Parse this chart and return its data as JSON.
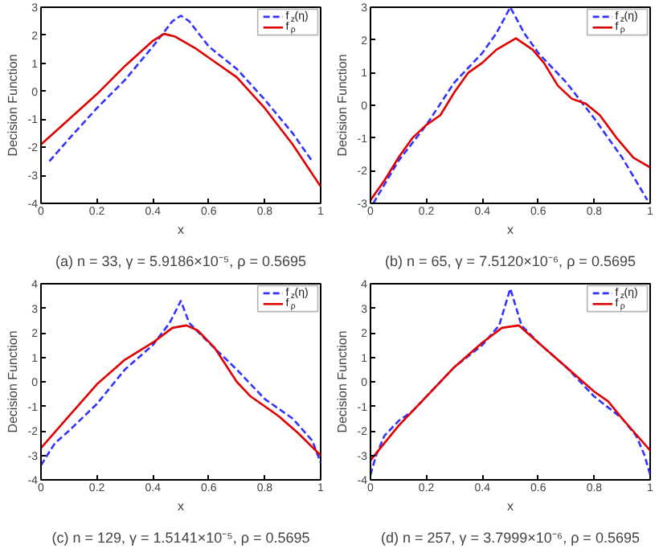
{
  "chart_data": [
    {
      "type": "line",
      "title": "(a) n = 33, γ = 5.9186×10⁻⁵, ρ = 0.5695",
      "xlabel": "x",
      "ylabel": "Decision Function",
      "xlim": [
        0,
        1
      ],
      "ylim": [
        -4,
        3
      ],
      "xticks": [
        0,
        0.2,
        0.4,
        0.6,
        0.8,
        1
      ],
      "yticks": [
        -4,
        -3,
        -2,
        -1,
        0,
        1,
        2,
        3
      ],
      "legend": "top right",
      "series": [
        {
          "name": "f$_{z}$(η)",
          "color": "#3333ff",
          "line_style": "dashed",
          "x": [
            0.03,
            0.1,
            0.2,
            0.3,
            0.4,
            0.47,
            0.5,
            0.53,
            0.6,
            0.7,
            0.8,
            0.9,
            0.97
          ],
          "values": [
            -2.5,
            -1.7,
            -0.6,
            0.4,
            1.6,
            2.5,
            2.7,
            2.5,
            1.6,
            0.8,
            -0.3,
            -1.5,
            -2.5
          ]
        },
        {
          "name": "f$_{ρ}$",
          "color": "#e00000",
          "line_style": "solid",
          "x": [
            0,
            0.1,
            0.2,
            0.3,
            0.4,
            0.44,
            0.48,
            0.55,
            0.6,
            0.7,
            0.8,
            0.9,
            1.0
          ],
          "values": [
            -1.9,
            -1.0,
            -0.1,
            0.9,
            1.8,
            2.05,
            1.95,
            1.55,
            1.2,
            0.5,
            -0.6,
            -1.9,
            -3.4
          ]
        }
      ]
    },
    {
      "type": "line",
      "title": "(b) n = 65, γ = 7.5120×10⁻⁶, ρ = 0.5695",
      "xlabel": "x",
      "ylabel": "Decision Function",
      "xlim": [
        0,
        1
      ],
      "ylim": [
        -3,
        3
      ],
      "xticks": [
        0,
        0.2,
        0.4,
        0.6,
        0.8,
        1
      ],
      "yticks": [
        -3,
        -2,
        -1,
        0,
        1,
        2,
        3
      ],
      "legend": "top right",
      "series": [
        {
          "name": "f$_{z}$(η)",
          "color": "#3333ff",
          "line_style": "dashed",
          "x": [
            0.01,
            0.1,
            0.2,
            0.3,
            0.4,
            0.45,
            0.5,
            0.55,
            0.6,
            0.7,
            0.8,
            0.9,
            0.99
          ],
          "values": [
            -3.0,
            -1.7,
            -0.6,
            0.7,
            1.6,
            2.2,
            3.0,
            2.2,
            1.6,
            0.7,
            -0.4,
            -1.6,
            -2.9
          ]
        },
        {
          "name": "f$_{ρ}$",
          "color": "#e00000",
          "line_style": "solid",
          "x": [
            0,
            0.05,
            0.1,
            0.15,
            0.2,
            0.25,
            0.3,
            0.35,
            0.4,
            0.45,
            0.52,
            0.58,
            0.62,
            0.67,
            0.72,
            0.77,
            0.82,
            0.88,
            0.94,
            1.0
          ],
          "values": [
            -2.9,
            -2.3,
            -1.6,
            -1.0,
            -0.6,
            -0.3,
            0.4,
            1.0,
            1.3,
            1.7,
            2.05,
            1.7,
            1.3,
            0.6,
            0.2,
            0.05,
            -0.3,
            -1.0,
            -1.6,
            -1.9
          ]
        }
      ]
    },
    {
      "type": "line",
      "title": "(c) n = 129, γ = 1.5141×10⁻⁵, ρ = 0.5695",
      "xlabel": "x",
      "ylabel": "Decision Function",
      "xlim": [
        0,
        1
      ],
      "ylim": [
        -4,
        4
      ],
      "xticks": [
        0,
        0.2,
        0.4,
        0.6,
        0.8,
        1
      ],
      "yticks": [
        -4,
        -3,
        -2,
        -1,
        0,
        1,
        2,
        3,
        4
      ],
      "legend": "top right",
      "series": [
        {
          "name": "f$_{z}$(η)",
          "color": "#3333ff",
          "line_style": "dashed",
          "x": [
            0,
            0.05,
            0.1,
            0.2,
            0.3,
            0.4,
            0.46,
            0.5,
            0.53,
            0.6,
            0.7,
            0.8,
            0.9,
            0.97,
            1.0
          ],
          "values": [
            -3.4,
            -2.5,
            -2.0,
            -0.9,
            0.5,
            1.5,
            2.4,
            3.3,
            2.4,
            1.6,
            0.5,
            -0.7,
            -1.5,
            -2.4,
            -3.3
          ]
        },
        {
          "name": "f$_{ρ}$",
          "color": "#e00000",
          "line_style": "solid",
          "x": [
            0,
            0.1,
            0.2,
            0.3,
            0.4,
            0.47,
            0.52,
            0.56,
            0.62,
            0.7,
            0.75,
            0.85,
            0.92,
            1.0
          ],
          "values": [
            -2.7,
            -1.4,
            -0.1,
            0.9,
            1.6,
            2.2,
            2.3,
            2.1,
            1.4,
            0.0,
            -0.6,
            -1.4,
            -2.1,
            -3.0
          ]
        }
      ]
    },
    {
      "type": "line",
      "title": "(d) n = 257, γ = 3.7999×10⁻⁶, ρ = 0.5695",
      "xlabel": "x",
      "ylabel": "Decision Function",
      "xlim": [
        0,
        1
      ],
      "ylim": [
        -4,
        4
      ],
      "xticks": [
        0,
        0.2,
        0.4,
        0.6,
        0.8,
        1
      ],
      "yticks": [
        -4,
        -3,
        -2,
        -1,
        0,
        1,
        2,
        3,
        4
      ],
      "legend": "top right",
      "series": [
        {
          "name": "f$_{z}$(η)",
          "color": "#3333ff",
          "line_style": "dashed",
          "x": [
            0,
            0.02,
            0.05,
            0.1,
            0.15,
            0.2,
            0.3,
            0.4,
            0.46,
            0.5,
            0.54,
            0.6,
            0.7,
            0.8,
            0.9,
            0.95,
            0.98,
            1.0
          ],
          "values": [
            -3.8,
            -3.0,
            -2.2,
            -1.6,
            -1.2,
            -0.6,
            0.6,
            1.5,
            2.3,
            3.8,
            2.3,
            1.6,
            0.6,
            -0.6,
            -1.5,
            -2.2,
            -3.0,
            -3.8
          ]
        },
        {
          "name": "f$_{ρ}$",
          "color": "#e00000",
          "line_style": "solid",
          "x": [
            0,
            0.1,
            0.2,
            0.3,
            0.4,
            0.47,
            0.53,
            0.6,
            0.7,
            0.8,
            0.85,
            0.9,
            1.0
          ],
          "values": [
            -3.2,
            -1.8,
            -0.6,
            0.6,
            1.6,
            2.2,
            2.3,
            1.6,
            0.6,
            -0.4,
            -0.8,
            -1.5,
            -2.8
          ]
        }
      ]
    }
  ]
}
